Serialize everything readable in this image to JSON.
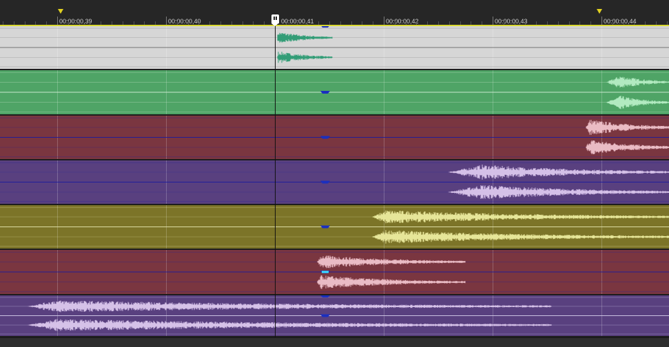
{
  "ruler": {
    "labels": [
      "00:00:00,39",
      "00:00:00,40",
      "00:00:00,41",
      "00:00:00,42",
      "00:00:00,43",
      "00:00:00,44"
    ]
  },
  "colors": {
    "track_bg": [
      "#d6d6d6",
      "#4fa466",
      "#7a3640",
      "#59407f",
      "#7c7428",
      "#7a3640",
      "#59407f"
    ],
    "track_wave": [
      "#2b9a72",
      "#b7eec5",
      "#f0c3cc",
      "#dcc8ee",
      "#ecec9e",
      "#f0c3cc",
      "#dcc8ee"
    ],
    "channel_line": [
      "#6a6a6a",
      "#d8f0da",
      "#1a1aa0",
      "#1a1aa0",
      "#e8e8b0",
      "#1a1aa0",
      "#d8d0ee"
    ],
    "fade_handle": "#1a2fbf",
    "fade_handle_selected": "#43e0ff",
    "loop_bar": "#d8d830",
    "cursor": "#ffffff"
  },
  "icons": {
    "cursor": "playhead-icon",
    "loop_start": "loop-start-marker-icon",
    "loop_end": "loop-end-marker-icon",
    "fade": "fade-handle-icon"
  }
}
